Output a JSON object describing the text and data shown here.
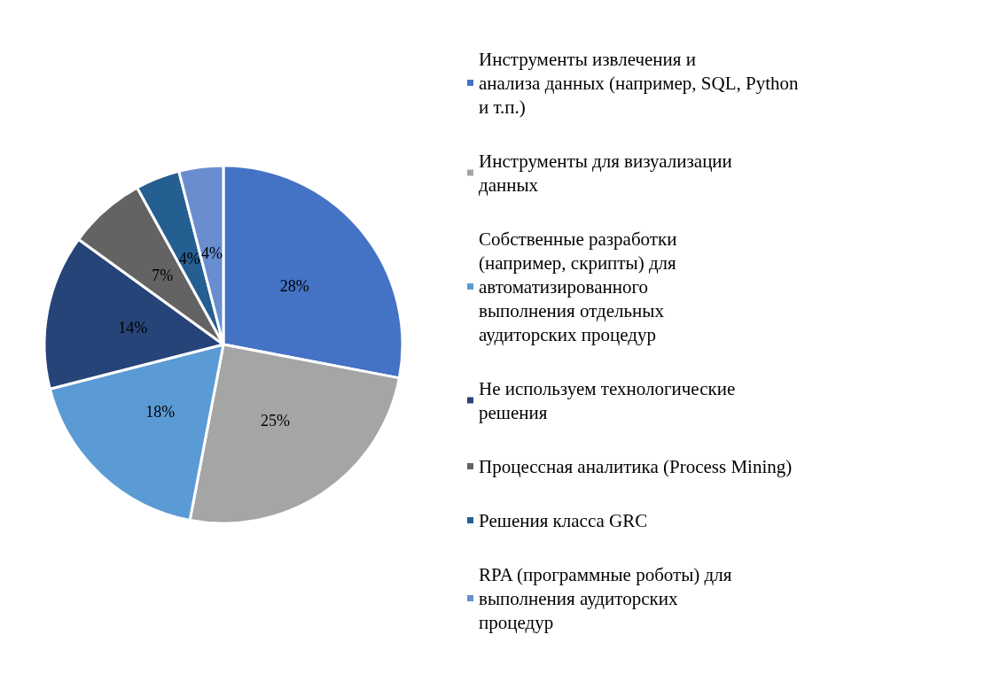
{
  "chart_data": {
    "type": "pie",
    "categories": [
      "Инструменты извлечения и анализа данных (например, SQL, Python и т.п.)",
      "Инструменты для визуализации данных",
      "Собственные разработки (например, скрипты) для автоматизированного выполнения отдельных аудиторских процедур",
      "Не используем технологические решения",
      "Процессная аналитика (Process Mining)",
      "Решения класса GRC",
      "RPA (программные роботы) для выполнения аудиторских процедур"
    ],
    "values": [
      28,
      25,
      18,
      14,
      7,
      4,
      4
    ],
    "value_labels": [
      "28%",
      "25%",
      "18%",
      "14%",
      "7%",
      "4%",
      "4%"
    ],
    "colors": [
      "#4472c4",
      "#a5a5a5",
      "#5b9bd5",
      "#264478",
      "#636363",
      "#255e91",
      "#698ed0"
    ],
    "legend": "right"
  }
}
